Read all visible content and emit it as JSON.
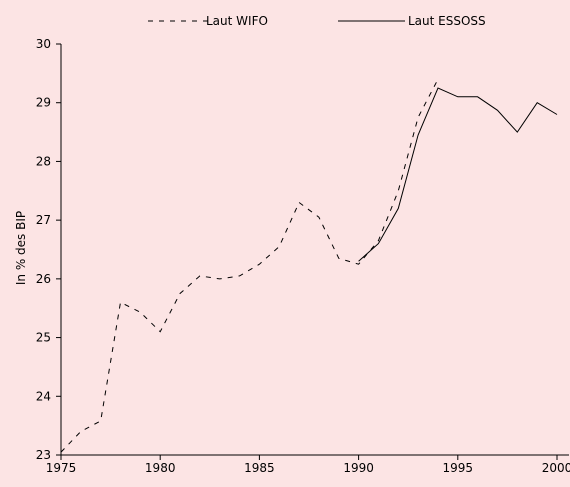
{
  "chart_data": {
    "type": "line",
    "ylabel": "In % des BIP",
    "xlabel": "",
    "title": "",
    "xlim": [
      1975,
      2000
    ],
    "ylim": [
      23,
      30
    ],
    "x_ticks": [
      1975,
      1980,
      1985,
      1990,
      1995,
      2000
    ],
    "y_ticks": [
      23,
      24,
      25,
      26,
      27,
      28,
      29,
      30
    ],
    "grid": false,
    "legend_position": "top",
    "series": [
      {
        "name": "Laut WIFO",
        "style": "dashed",
        "x": [
          1975,
          1976,
          1977,
          1978,
          1979,
          1980,
          1981,
          1982,
          1983,
          1984,
          1985,
          1986,
          1987,
          1988,
          1989,
          1990,
          1991,
          1992,
          1993,
          1994
        ],
        "y": [
          23.05,
          23.4,
          23.58,
          25.6,
          25.43,
          25.1,
          25.75,
          26.05,
          26.0,
          26.05,
          26.25,
          26.55,
          27.3,
          27.05,
          26.35,
          26.25,
          26.65,
          27.5,
          28.75,
          29.4
        ]
      },
      {
        "name": "Laut ESSOSS",
        "style": "solid",
        "x": [
          1990,
          1991,
          1992,
          1993,
          1994,
          1995,
          1996,
          1997,
          1998,
          1999,
          2000
        ],
        "y": [
          26.3,
          26.6,
          27.2,
          28.45,
          29.25,
          29.1,
          29.1,
          28.87,
          28.5,
          29.0,
          28.8
        ]
      }
    ]
  },
  "colors": {
    "background": "#fce4e4",
    "line": "#000000"
  }
}
